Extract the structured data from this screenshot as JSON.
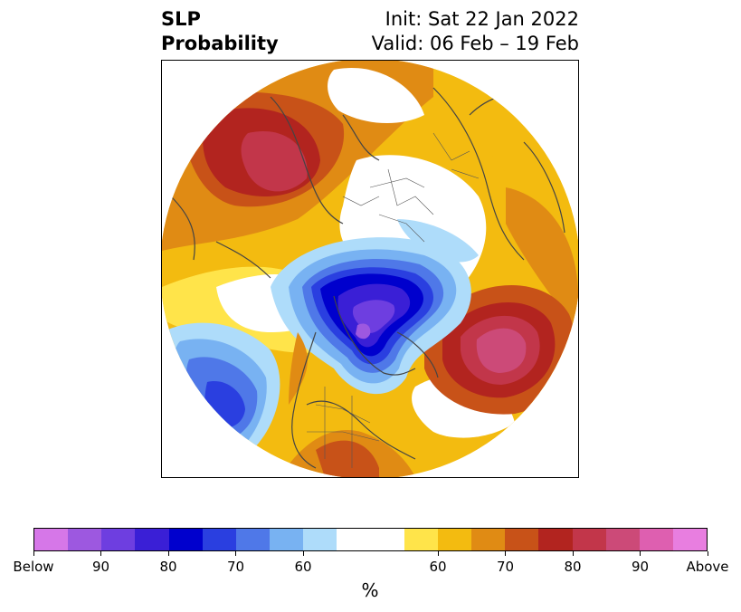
{
  "title": {
    "left_line1": "SLP",
    "left_line2": "Probability",
    "right_line1": "Init: Sat 22 Jan 2022",
    "right_line2": "Valid: 06 Feb – 19 Feb"
  },
  "colorbar": {
    "unit": "%",
    "colors": [
      "#d677e8",
      "#9d58e0",
      "#6e3ee0",
      "#3a1fd6",
      "#0000cd",
      "#2a3fe0",
      "#4f78e8",
      "#78b2f2",
      "#aedcfa",
      "#ffffff",
      "#ffffff",
      "#ffe44a",
      "#f3bb10",
      "#e08b14",
      "#c85218",
      "#b2241f",
      "#c2364a",
      "#cc4a78",
      "#de5fb0",
      "#e87ee0"
    ],
    "tick_labels": [
      "Below",
      "90",
      "80",
      "70",
      "60",
      "60",
      "70",
      "80",
      "90",
      "Above"
    ]
  },
  "map": {
    "projection": "north-polar-stereographic",
    "below_color": "#0000cd",
    "above_color": "#b2241f",
    "coastline_color": "#444444"
  }
}
